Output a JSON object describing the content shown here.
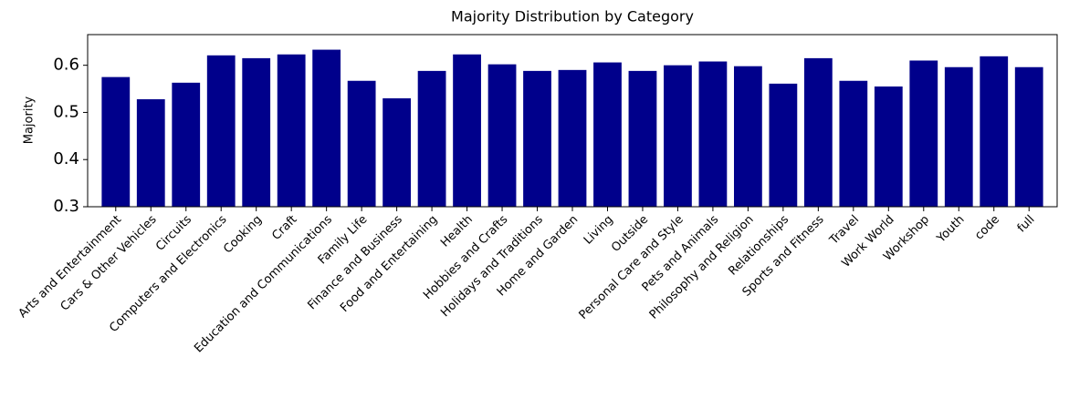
{
  "chart_data": {
    "type": "bar",
    "title": "Majority Distribution by Category",
    "y_label": "Majority",
    "categories": [
      "Arts and Entertainment",
      "Cars & Other Vehicles",
      "Circuits",
      "Computers and Electronics",
      "Cooking",
      "Craft",
      "Education and Communications",
      "Family Life",
      "Finance and Business",
      "Food and Entertaining",
      "Health",
      "Hobbies and Crafts",
      "Holidays and Traditions",
      "Home and Garden",
      "Living",
      "Outside",
      "Personal Care and Style",
      "Pets and Animals",
      "Philosophy and Religion",
      "Relationships",
      "Sports and Fitness",
      "Travel",
      "Work World",
      "Workshop",
      "Youth",
      "code",
      "full"
    ],
    "values": [
      0.575,
      0.528,
      0.563,
      0.621,
      0.615,
      0.623,
      0.633,
      0.567,
      0.53,
      0.588,
      0.623,
      0.602,
      0.588,
      0.59,
      0.606,
      0.588,
      0.6,
      0.608,
      0.598,
      0.561,
      0.615,
      0.567,
      0.555,
      0.61,
      0.596,
      0.619,
      0.596
    ],
    "color": "#00008b",
    "ylim": [
      0.3,
      0.665
    ],
    "yticks": [
      0.3,
      0.4,
      0.5,
      0.6
    ]
  }
}
